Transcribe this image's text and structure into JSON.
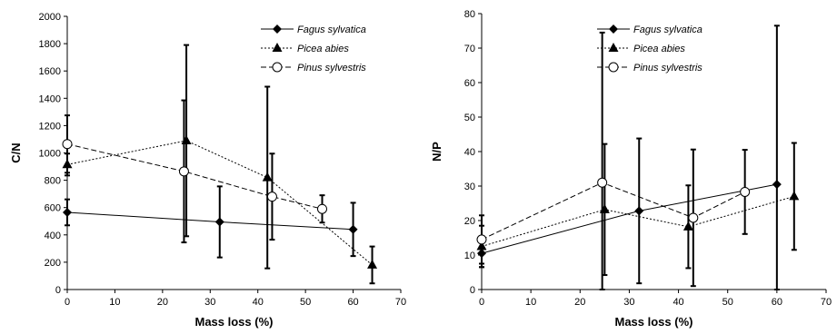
{
  "chart_data": [
    {
      "type": "line",
      "title": "",
      "xlabel": "Mass loss (%)",
      "ylabel": "C/N",
      "xlim": [
        0,
        70
      ],
      "ylim": [
        0,
        2000
      ],
      "xticks": [
        0,
        10,
        20,
        30,
        40,
        50,
        60,
        70
      ],
      "yticks": [
        0,
        200,
        400,
        600,
        800,
        1000,
        1200,
        1400,
        1600,
        1800,
        2000
      ],
      "grid": false,
      "legend_position": "top-right",
      "series": [
        {
          "name": "Fagus sylvatica",
          "marker": "diamond",
          "dash": "solid",
          "points": [
            {
              "x": 0,
              "y": 565,
              "err": 95
            },
            {
              "x": 32,
              "y": 495,
              "err": 260
            },
            {
              "x": 60,
              "y": 440,
              "err": 195
            }
          ]
        },
        {
          "name": "Picea abies",
          "marker": "triangle",
          "dash": "dotted",
          "points": [
            {
              "x": 0,
              "y": 915,
              "err": 80
            },
            {
              "x": 25,
              "y": 1090,
              "err": 700
            },
            {
              "x": 42,
              "y": 820,
              "err": 665
            },
            {
              "x": 64,
              "y": 180,
              "err": 135
            }
          ]
        },
        {
          "name": "Pinus sylvestris",
          "marker": "circle",
          "dash": "dashed",
          "points": [
            {
              "x": 0,
              "y": 1065,
              "err": 210
            },
            {
              "x": 24.5,
              "y": 865,
              "err": 520
            },
            {
              "x": 43,
              "y": 680,
              "err": 315
            },
            {
              "x": 53.5,
              "y": 590,
              "err": 100
            }
          ]
        }
      ]
    },
    {
      "type": "line",
      "title": "",
      "xlabel": "Mass loss (%)",
      "ylabel": "N/P",
      "xlim": [
        0,
        70
      ],
      "ylim": [
        0,
        80
      ],
      "xticks": [
        0,
        10,
        20,
        30,
        40,
        50,
        60,
        70
      ],
      "yticks": [
        0,
        10,
        20,
        30,
        40,
        50,
        60,
        70,
        80
      ],
      "grid": false,
      "legend_position": "top-right",
      "series": [
        {
          "name": "Fagus sylvatica",
          "marker": "diamond",
          "dash": "solid",
          "points": [
            {
              "x": 0,
              "y": 10.5,
              "err": 4
            },
            {
              "x": 32,
              "y": 22.8,
              "err": 21
            },
            {
              "x": 60,
              "y": 30.5,
              "err": 46
            }
          ]
        },
        {
          "name": "Picea abies",
          "marker": "triangle",
          "dash": "dotted",
          "points": [
            {
              "x": 0,
              "y": 12.5,
              "err": 6
            },
            {
              "x": 25,
              "y": 23.2,
              "err": 19
            },
            {
              "x": 42,
              "y": 18.2,
              "err": 12
            },
            {
              "x": 63.5,
              "y": 27,
              "err": 15.5
            }
          ]
        },
        {
          "name": "Pinus sylvestris",
          "marker": "circle",
          "dash": "dashed",
          "points": [
            {
              "x": 0,
              "y": 14.5,
              "err": 7
            },
            {
              "x": 24.5,
              "y": 31,
              "err": 43.5
            },
            {
              "x": 43,
              "y": 20.8,
              "err": 19.8
            },
            {
              "x": 53.5,
              "y": 28.3,
              "err": 12.2
            }
          ]
        }
      ]
    }
  ]
}
